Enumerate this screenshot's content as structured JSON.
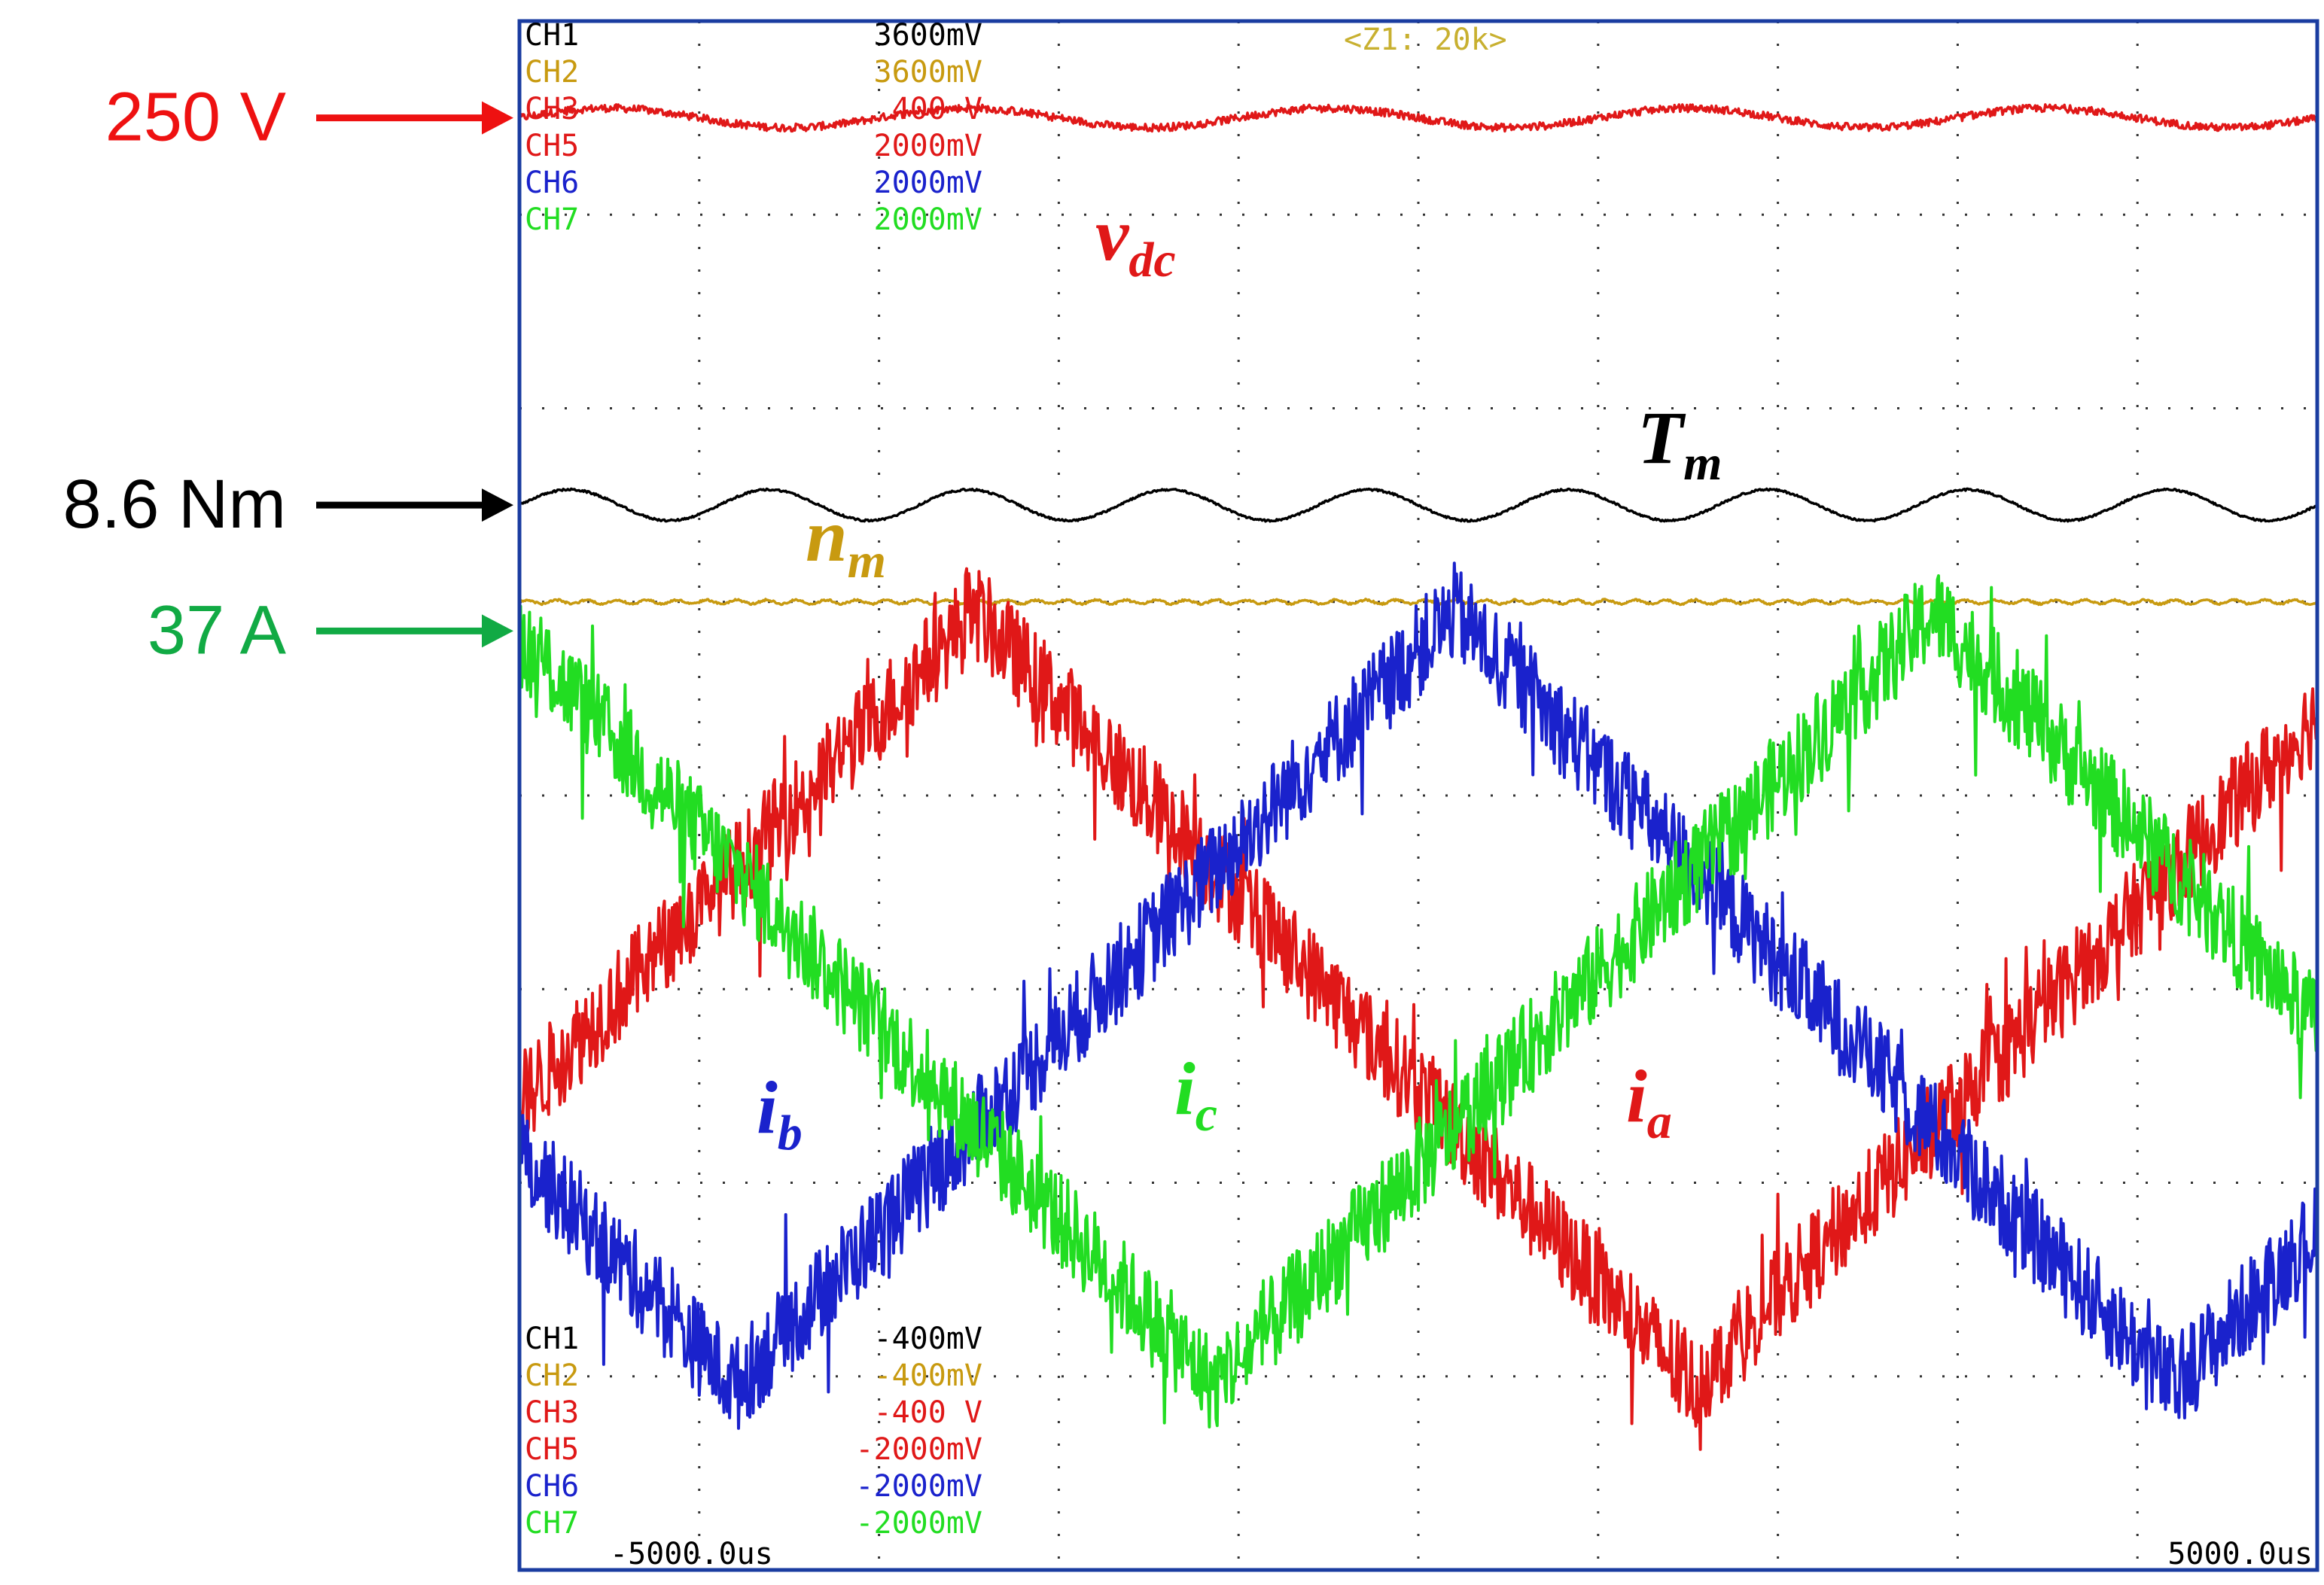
{
  "chart_data": {
    "type": "line",
    "title": "",
    "xlabel": "",
    "ylabel": "",
    "xlim": [
      -5000,
      5000
    ],
    "x_unit": "us",
    "x_tick_labels": [
      "-5000.0us",
      "5000.0us"
    ],
    "zoom_label": "<Z1: 20k>",
    "grid": true,
    "channels_top": [
      {
        "name": "CH1",
        "scale": "3600mV",
        "color": "#000000"
      },
      {
        "name": "CH2",
        "scale": "3600mV",
        "color": "#c89a10"
      },
      {
        "name": "CH3",
        "scale": "400 V",
        "color": "#e01818"
      },
      {
        "name": "CH5",
        "scale": "2000mV",
        "color": "#e01818"
      },
      {
        "name": "CH6",
        "scale": "2000mV",
        "color": "#1a22cc"
      },
      {
        "name": "CH7",
        "scale": "2000mV",
        "color": "#22dd22"
      }
    ],
    "channels_bottom": [
      {
        "name": "CH1",
        "scale": "-400mV",
        "color": "#000000"
      },
      {
        "name": "CH2",
        "scale": "-400mV",
        "color": "#c89a10"
      },
      {
        "name": "CH3",
        "scale": "-400 V",
        "color": "#e01818"
      },
      {
        "name": "CH5",
        "scale": "-2000mV",
        "color": "#e01818"
      },
      {
        "name": "CH6",
        "scale": "-2000mV",
        "color": "#1a22cc"
      },
      {
        "name": "CH7",
        "scale": "-2000mV",
        "color": "#22dd22"
      }
    ],
    "level_markers": [
      {
        "label": "250 V",
        "color": "#ee1111",
        "division": 7.5
      },
      {
        "label": "8.6 Nm",
        "color": "#000000",
        "division": 5.5
      },
      {
        "label": "37 A",
        "color": "#11aa44",
        "division": 4.85
      }
    ],
    "series": [
      {
        "label_main": "v",
        "label_sub": "dc",
        "color": "#e01818",
        "kind": "flat",
        "level": 7.5,
        "ripple": 0.05,
        "ripple_cycles": 5,
        "noise": 0.02
      },
      {
        "label_main": "T",
        "label_sub": "m",
        "color": "#000000",
        "kind": "flat",
        "level": 5.5,
        "ripple": 0.08,
        "ripple_cycles": 9,
        "noise": 0.005
      },
      {
        "label_main": "n",
        "label_sub": "m",
        "color": "#c89a10",
        "kind": "flat",
        "level": 5.0,
        "ripple": 0.01,
        "ripple_cycles": 60,
        "noise": 0.005
      },
      {
        "label_main": "i",
        "label_sub": "b",
        "color": "#1a22cc",
        "kind": "triangle",
        "center": 2.95,
        "amplitude": 2.0,
        "period_us": 8000,
        "peak_time_us": 200,
        "noise": 0.25
      },
      {
        "label_main": "i",
        "label_sub": "c",
        "color": "#22dd22",
        "kind": "triangle",
        "center": 2.95,
        "amplitude": 2.0,
        "period_us": 8000,
        "peak_time_us": 2867,
        "noise": 0.25
      },
      {
        "label_main": "i",
        "label_sub": "a",
        "color": "#e01818",
        "kind": "triangle",
        "center": 2.95,
        "amplitude": 2.0,
        "period_us": 8000,
        "peak_time_us": -2467,
        "noise": 0.25
      }
    ]
  }
}
